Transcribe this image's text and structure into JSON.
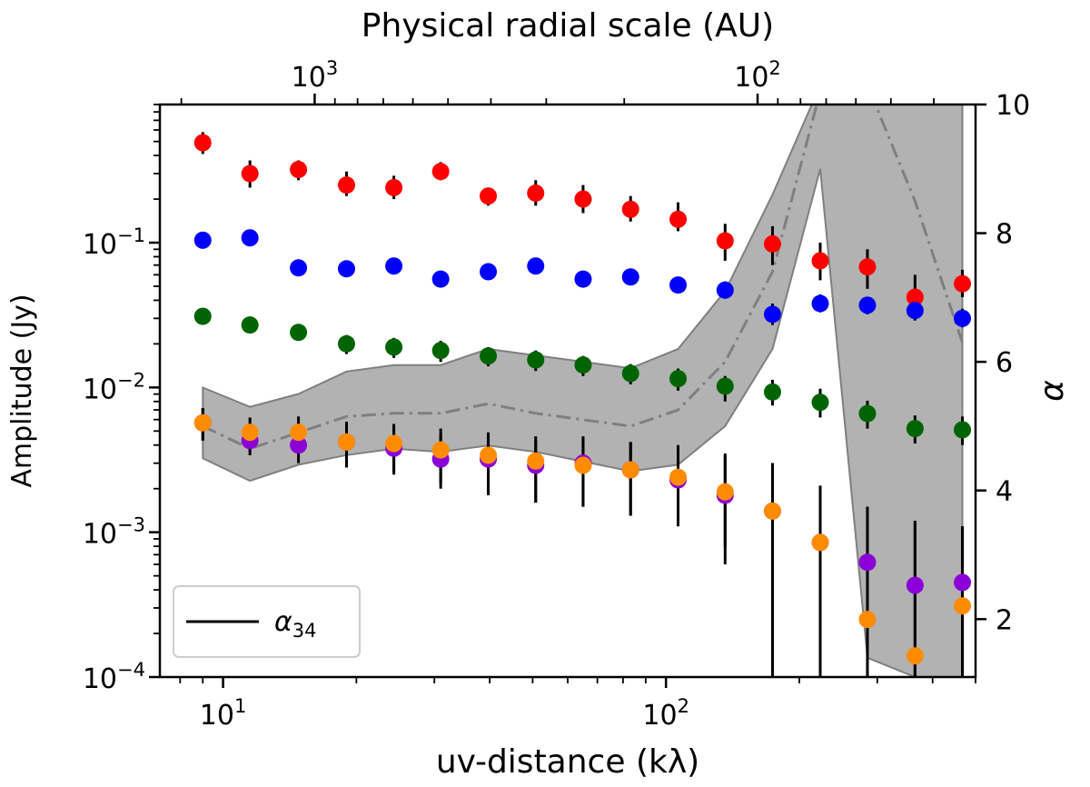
{
  "chart_data": {
    "type": "scatter",
    "xlabel": "uv-distance (kλ)",
    "ylabel": "Amplitude (Jy)",
    "ylabel_right": "α",
    "xlabel_top": "Physical radial scale (AU)",
    "x_scale": "log",
    "y_scale": "log",
    "xlim": [
      7.2,
      500
    ],
    "ylim": [
      0.0001,
      0.9
    ],
    "ylim_right": [
      1.1,
      10
    ],
    "x_ticks": [
      {
        "value": 10,
        "base": "10",
        "exp": "1"
      },
      {
        "value": 100,
        "base": "10",
        "exp": "2"
      }
    ],
    "y_ticks": [
      {
        "value": 0.1,
        "base": "10",
        "exp": "−1"
      },
      {
        "value": 0.01,
        "base": "10",
        "exp": "−2"
      },
      {
        "value": 0.001,
        "base": "10",
        "exp": "−3"
      },
      {
        "value": 0.0001,
        "base": "10",
        "exp": "−4"
      }
    ],
    "y_right_ticks": [
      2,
      4,
      6,
      8,
      10
    ],
    "top_ticks": [
      {
        "value": 1000,
        "base": "10",
        "exp": "3"
      },
      {
        "value": 100,
        "base": "10",
        "exp": "2"
      }
    ],
    "legend": {
      "label_main": "α",
      "label_sub": "34",
      "position": "lower-left"
    },
    "x": [
      9,
      11.5,
      14.8,
      19,
      24.3,
      31,
      39.7,
      50.8,
      65,
      83.2,
      106.5,
      136,
      174,
      223,
      285,
      365,
      467
    ],
    "series": [
      {
        "color": "#ff0000",
        "values": [
          0.49,
          0.3,
          0.32,
          0.25,
          0.24,
          0.31,
          0.21,
          0.22,
          0.2,
          0.17,
          0.145,
          0.103,
          0.098,
          0.075,
          0.068,
          0.042,
          0.052
        ],
        "err_low": [
          0.41,
          0.24,
          0.27,
          0.21,
          0.2,
          0.27,
          0.18,
          0.18,
          0.16,
          0.14,
          0.12,
          0.075,
          0.07,
          0.055,
          0.048,
          0.032,
          0.042
        ],
        "err_high": [
          0.58,
          0.37,
          0.37,
          0.31,
          0.29,
          0.36,
          0.24,
          0.27,
          0.25,
          0.21,
          0.19,
          0.135,
          0.13,
          0.1,
          0.09,
          0.06,
          0.065
        ]
      },
      {
        "color": "#0000ff",
        "values": [
          0.104,
          0.108,
          0.067,
          0.066,
          0.069,
          0.056,
          0.063,
          0.069,
          0.056,
          0.058,
          0.051,
          0.047,
          0.032,
          0.038,
          0.037,
          0.034,
          0.03
        ],
        "err_low": [
          0.095,
          0.098,
          0.06,
          0.06,
          0.063,
          0.051,
          0.057,
          0.062,
          0.05,
          0.052,
          0.045,
          0.041,
          0.027,
          0.033,
          0.032,
          0.029,
          0.026
        ],
        "err_high": [
          0.114,
          0.118,
          0.074,
          0.072,
          0.075,
          0.062,
          0.069,
          0.076,
          0.062,
          0.064,
          0.057,
          0.054,
          0.038,
          0.044,
          0.042,
          0.039,
          0.035
        ]
      },
      {
        "color": "#006400",
        "values": [
          0.031,
          0.027,
          0.024,
          0.02,
          0.019,
          0.018,
          0.0165,
          0.0155,
          0.0143,
          0.0125,
          0.0115,
          0.0102,
          0.0093,
          0.0079,
          0.0066,
          0.0052,
          0.0051
        ],
        "err_low": [
          0.028,
          0.025,
          0.021,
          0.017,
          0.016,
          0.015,
          0.014,
          0.013,
          0.012,
          0.0105,
          0.0095,
          0.008,
          0.0075,
          0.0062,
          0.0052,
          0.0041,
          0.004
        ],
        "err_high": [
          0.034,
          0.03,
          0.027,
          0.023,
          0.022,
          0.021,
          0.019,
          0.018,
          0.0165,
          0.0145,
          0.0135,
          0.012,
          0.0113,
          0.0098,
          0.0081,
          0.0064,
          0.0063
        ]
      },
      {
        "color": "#8b00d6",
        "values": [
          0.0057,
          0.0043,
          0.004,
          0.0042,
          0.0038,
          0.0032,
          0.0032,
          0.0029,
          0.003,
          0.0027,
          0.0023,
          0.0018,
          0.0014,
          0.00085,
          0.00062,
          0.00043,
          0.00045
        ],
        "err_low": [
          0.0043,
          0.0034,
          0.003,
          0.0028,
          0.0025,
          0.002,
          0.0018,
          0.0016,
          0.0015,
          0.0013,
          0.0011,
          0.0008,
          0.0001,
          0.0001,
          0.00025,
          0.0001,
          0.0001
        ],
        "err_high": [
          0.0072,
          0.0052,
          0.0055,
          0.0058,
          0.0052,
          0.0048,
          0.0046,
          0.0043,
          0.0046,
          0.0042,
          0.0038,
          0.0035,
          0.003,
          0.002,
          0.0015,
          0.0012,
          0.0011
        ]
      },
      {
        "color": "#ff8c00",
        "values": [
          0.0057,
          0.0049,
          0.0049,
          0.0042,
          0.0041,
          0.0037,
          0.0034,
          0.0031,
          0.0029,
          0.0027,
          0.0024,
          0.0019,
          0.0014,
          0.00085,
          0.00025,
          0.00014,
          0.00031
        ],
        "err_low": [
          0.0043,
          0.0036,
          0.0035,
          0.0028,
          0.0026,
          0.0022,
          0.0019,
          0.0016,
          0.0015,
          0.0013,
          0.0011,
          0.0006,
          0.0001,
          0.0001,
          0.0001,
          0.0001,
          0.0001
        ],
        "err_high": [
          0.0072,
          0.0062,
          0.0063,
          0.0056,
          0.0056,
          0.0052,
          0.0049,
          0.0046,
          0.0044,
          0.0042,
          0.004,
          0.0034,
          0.003,
          0.0021,
          0.0015,
          0.0012,
          0.0011
        ]
      }
    ],
    "alpha_series": {
      "x": [
        9,
        11.5,
        14.8,
        19,
        24.3,
        31,
        39.7,
        50.8,
        65,
        83.2,
        106.5,
        136,
        174,
        223,
        285,
        365,
        467
      ],
      "values": [
        5.0,
        4.65,
        4.9,
        5.15,
        5.2,
        5.2,
        5.35,
        5.2,
        5.1,
        5.0,
        5.25,
        6.0,
        7.4,
        10.2,
        10.3,
        8.5,
        6.3
      ],
      "low": [
        4.5,
        4.15,
        4.4,
        4.55,
        4.65,
        4.6,
        4.7,
        4.6,
        4.45,
        4.3,
        4.4,
        5.0,
        6.2,
        9.0,
        1.4,
        1.1,
        1.1
      ],
      "high": [
        5.6,
        5.3,
        5.5,
        5.85,
        5.95,
        5.95,
        6.2,
        6.1,
        6.0,
        5.9,
        6.2,
        7.1,
        8.6,
        10.3,
        10.3,
        10.3,
        10.3
      ],
      "line_color": "#7f7f7f",
      "band_color": "#b2b2b2"
    }
  }
}
